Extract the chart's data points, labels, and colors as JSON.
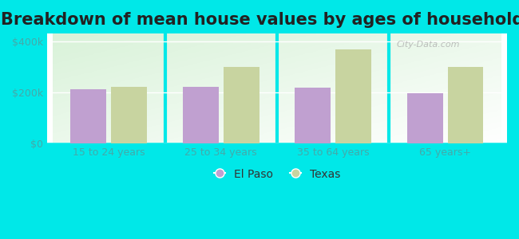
{
  "title": "Breakdown of mean house values by ages of householders",
  "categories": [
    "15 to 24 years",
    "25 to 34 years",
    "35 to 64 years",
    "65 years+"
  ],
  "el_paso_values": [
    213000,
    222000,
    218000,
    196000
  ],
  "texas_values": [
    222000,
    300000,
    368000,
    300000
  ],
  "el_paso_color": "#c0a0d0",
  "texas_color": "#c8d4a0",
  "background_outer": "#00e8e8",
  "yticks": [
    0,
    200000,
    400000
  ],
  "ytick_labels": [
    "$0",
    "$200k",
    "$400k"
  ],
  "ylim": [
    0,
    430000
  ],
  "legend_el_paso": "El Paso",
  "legend_texas": "Texas",
  "title_fontsize": 15,
  "bar_width": 0.32,
  "figsize": [
    6.5,
    3.0
  ],
  "dpi": 100,
  "watermark": "City-Data.com"
}
